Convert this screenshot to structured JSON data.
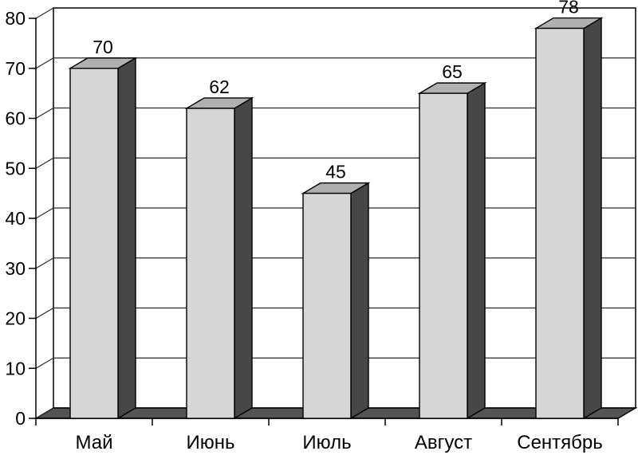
{
  "chart_data": {
    "type": "bar",
    "style": "3d-column",
    "title": "",
    "xlabel": "",
    "ylabel": "",
    "categories": [
      "Май",
      "Июнь",
      "Июль",
      "Август",
      "Сентябрь"
    ],
    "values": [
      70,
      62,
      45,
      65,
      78
    ],
    "value_labels": [
      "70",
      "62",
      "45",
      "65",
      "78"
    ],
    "show_value_labels": true,
    "ylim": [
      0,
      80
    ],
    "ytick_step": 10,
    "ytick_labels": [
      "0",
      "10",
      "20",
      "30",
      "40",
      "50",
      "60",
      "70",
      "80"
    ],
    "grid": true,
    "legend_position": "none",
    "colors": {
      "background": "#ffffff",
      "wall": "#ffffff",
      "bar_front": "#d6d6d6",
      "bar_top": "#b0b0b0",
      "bar_side": "#474747",
      "floor": "#545454",
      "outline": "#000000",
      "gridline": "#2a2a2a",
      "text": "#000000"
    }
  }
}
